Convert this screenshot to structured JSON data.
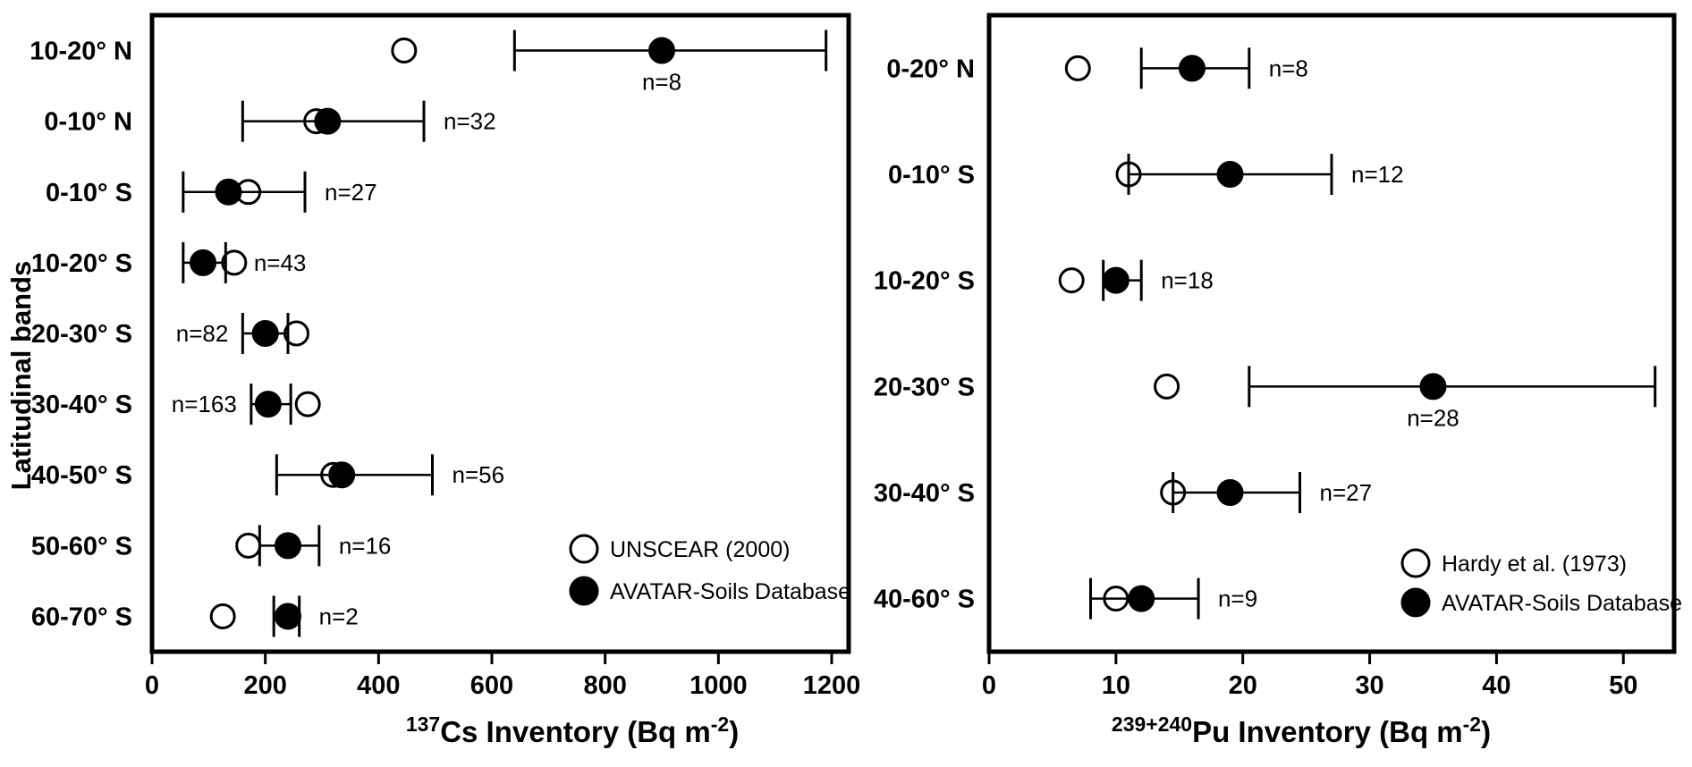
{
  "figure": {
    "background": "#ffffff",
    "ink_color": "#000000",
    "y_axis_title": "Latitudinal bands"
  },
  "chart_data": [
    {
      "type": "scatter",
      "orientation": "horizontal-category",
      "title_parts": {
        "iso_sup": "137",
        "main": "Cs Inventory (Bq m",
        "exp_sup": "-2",
        "end": ")"
      },
      "xlabel_plain": "137Cs Inventory (Bq m-2)",
      "ylabel": "Latitudinal bands",
      "xlim": [
        0,
        1230
      ],
      "xticks": [
        0,
        200,
        400,
        600,
        800,
        1000,
        1200
      ],
      "grid": false,
      "legend_position": "inside-bottom-right",
      "legend": [
        {
          "marker": "open",
          "label": "UNSCEAR (2000)"
        },
        {
          "marker": "filled",
          "label": "AVATAR-Soils Database"
        }
      ],
      "series_names": {
        "open": "UNSCEAR (2000)",
        "filled": "AVATAR-Soils Database"
      },
      "rows": [
        {
          "band": "10-20° N",
          "open": 445,
          "filled": 900,
          "err_lo": 640,
          "err_hi": 1190,
          "n": 8,
          "n_label": "n=8",
          "n_pos": "below"
        },
        {
          "band": "0-10° N",
          "open": 290,
          "filled": 310,
          "err_lo": 160,
          "err_hi": 480,
          "n": 32,
          "n_label": "n=32",
          "n_pos": "right"
        },
        {
          "band": "0-10° S",
          "open": 170,
          "filled": 135,
          "err_lo": 55,
          "err_hi": 270,
          "n": 27,
          "n_label": "n=27",
          "n_pos": "right"
        },
        {
          "band": "10-20° S",
          "open": 145,
          "filled": 90,
          "err_lo": 55,
          "err_hi": 130,
          "n": 43,
          "n_label": "n=43",
          "n_pos": "right"
        },
        {
          "band": "20-30° S",
          "open": 255,
          "filled": 200,
          "err_lo": 160,
          "err_hi": 240,
          "n": 82,
          "n_label": "n=82",
          "n_pos": "left"
        },
        {
          "band": "30-40° S",
          "open": 275,
          "filled": 205,
          "err_lo": 175,
          "err_hi": 245,
          "n": 163,
          "n_label": "n=163",
          "n_pos": "left"
        },
        {
          "band": "40-50° S",
          "open": 320,
          "filled": 335,
          "err_lo": 220,
          "err_hi": 495,
          "n": 56,
          "n_label": "n=56",
          "n_pos": "right"
        },
        {
          "band": "50-60° S",
          "open": 170,
          "filled": 240,
          "err_lo": 190,
          "err_hi": 295,
          "n": 16,
          "n_label": "n=16",
          "n_pos": "right"
        },
        {
          "band": "60-70° S",
          "open": 125,
          "filled": 240,
          "err_lo": 215,
          "err_hi": 260,
          "n": 2,
          "n_label": "n=2",
          "n_pos": "right"
        }
      ]
    },
    {
      "type": "scatter",
      "orientation": "horizontal-category",
      "title_parts": {
        "iso_sup": "239+240",
        "main": "Pu Inventory (Bq m",
        "exp_sup": "-2",
        "end": ")"
      },
      "xlabel_plain": "239+240Pu Inventory (Bq m-2)",
      "ylabel": "",
      "xlim": [
        0,
        54
      ],
      "xticks": [
        0,
        10,
        20,
        30,
        40,
        50
      ],
      "grid": false,
      "legend_position": "inside-bottom-right",
      "legend": [
        {
          "marker": "open",
          "label": "Hardy et al. (1973)"
        },
        {
          "marker": "filled",
          "label": "AVATAR-Soils Database"
        }
      ],
      "series_names": {
        "open": "Hardy et al. (1973)",
        "filled": "AVATAR-Soils Database"
      },
      "rows": [
        {
          "band": "0-20° N",
          "open": 7,
          "filled": 16,
          "err_lo": 12,
          "err_hi": 20.5,
          "n": 8,
          "n_label": "n=8",
          "n_pos": "right"
        },
        {
          "band": "0-10° S",
          "open": 11,
          "filled": 19,
          "err_lo": 11,
          "err_hi": 27,
          "n": 12,
          "n_label": "n=12",
          "n_pos": "right"
        },
        {
          "band": "10-20° S",
          "open": 6.5,
          "filled": 10,
          "err_lo": 9,
          "err_hi": 12,
          "n": 18,
          "n_label": "n=18",
          "n_pos": "right"
        },
        {
          "band": "20-30° S",
          "open": 14,
          "filled": 35,
          "err_lo": 20.5,
          "err_hi": 52.5,
          "n": 28,
          "n_label": "n=28",
          "n_pos": "below"
        },
        {
          "band": "30-40° S",
          "open": 14.5,
          "filled": 19,
          "err_lo": 14.5,
          "err_hi": 24.5,
          "n": 27,
          "n_label": "n=27",
          "n_pos": "right"
        },
        {
          "band": "40-60° S",
          "open": 10,
          "filled": 12,
          "err_lo": 8,
          "err_hi": 16.5,
          "n": 9,
          "n_label": "n=9",
          "n_pos": "right"
        }
      ]
    }
  ]
}
